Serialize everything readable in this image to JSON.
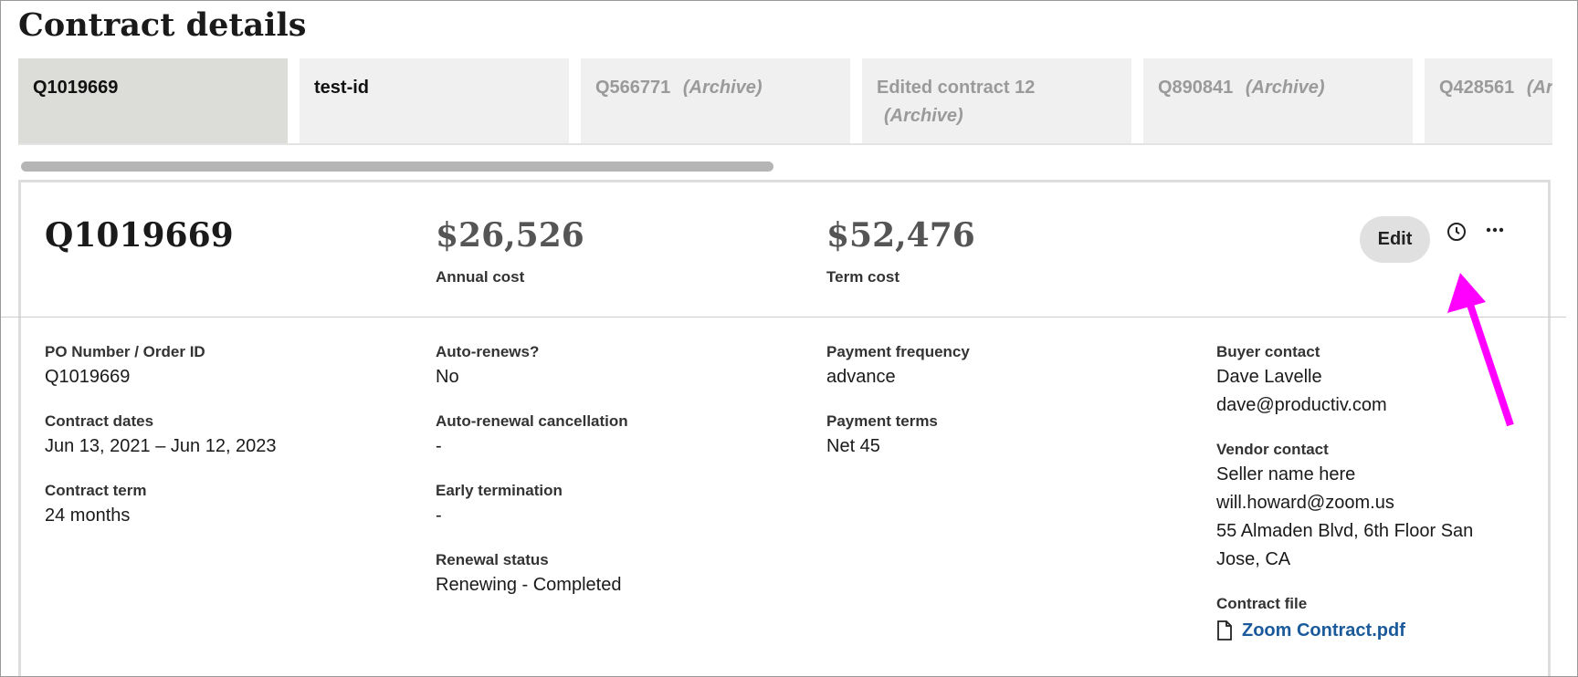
{
  "title": "Contract details",
  "tabs": [
    {
      "label": "Q1019669"
    },
    {
      "label": "test-id"
    },
    {
      "label": "Q566771",
      "archive": "(Archive)"
    },
    {
      "label": "Edited contract 12",
      "archive": "(Archive)"
    },
    {
      "label": "Q890841",
      "archive": "(Archive)"
    },
    {
      "label": "Q428561",
      "archive": "(Archive)"
    }
  ],
  "contract": {
    "id": "Q1019669",
    "annual_cost": "$26,526",
    "annual_cost_label": "Annual cost",
    "term_cost": "$52,476",
    "term_cost_label": "Term cost"
  },
  "actions": {
    "edit": "Edit"
  },
  "columns": [
    [
      {
        "label": "PO Number / Order ID",
        "values": [
          "Q1019669"
        ]
      },
      {
        "label": "Contract dates",
        "values": [
          "Jun 13, 2021 – Jun 12, 2023"
        ]
      },
      {
        "label": "Contract term",
        "values": [
          "24 months"
        ]
      }
    ],
    [
      {
        "label": "Auto-renews?",
        "values": [
          "No"
        ]
      },
      {
        "label": "Auto-renewal cancellation",
        "values": [
          "-"
        ]
      },
      {
        "label": "Early termination",
        "values": [
          "-"
        ]
      },
      {
        "label": "Renewal status",
        "values": [
          "Renewing - Completed"
        ]
      }
    ],
    [
      {
        "label": "Payment frequency",
        "values": [
          "advance"
        ]
      },
      {
        "label": "Payment terms",
        "values": [
          "Net 45"
        ]
      }
    ],
    [
      {
        "label": "Buyer contact",
        "values": [
          "Dave Lavelle",
          "dave@productiv.com"
        ]
      },
      {
        "label": "Vendor contact",
        "values": [
          "Seller name here",
          "will.howard@zoom.us",
          "55 Almaden Blvd, 6th Floor San Jose, CA"
        ]
      },
      {
        "label": "Contract file",
        "link": "Zoom Contract.pdf"
      }
    ]
  ]
}
